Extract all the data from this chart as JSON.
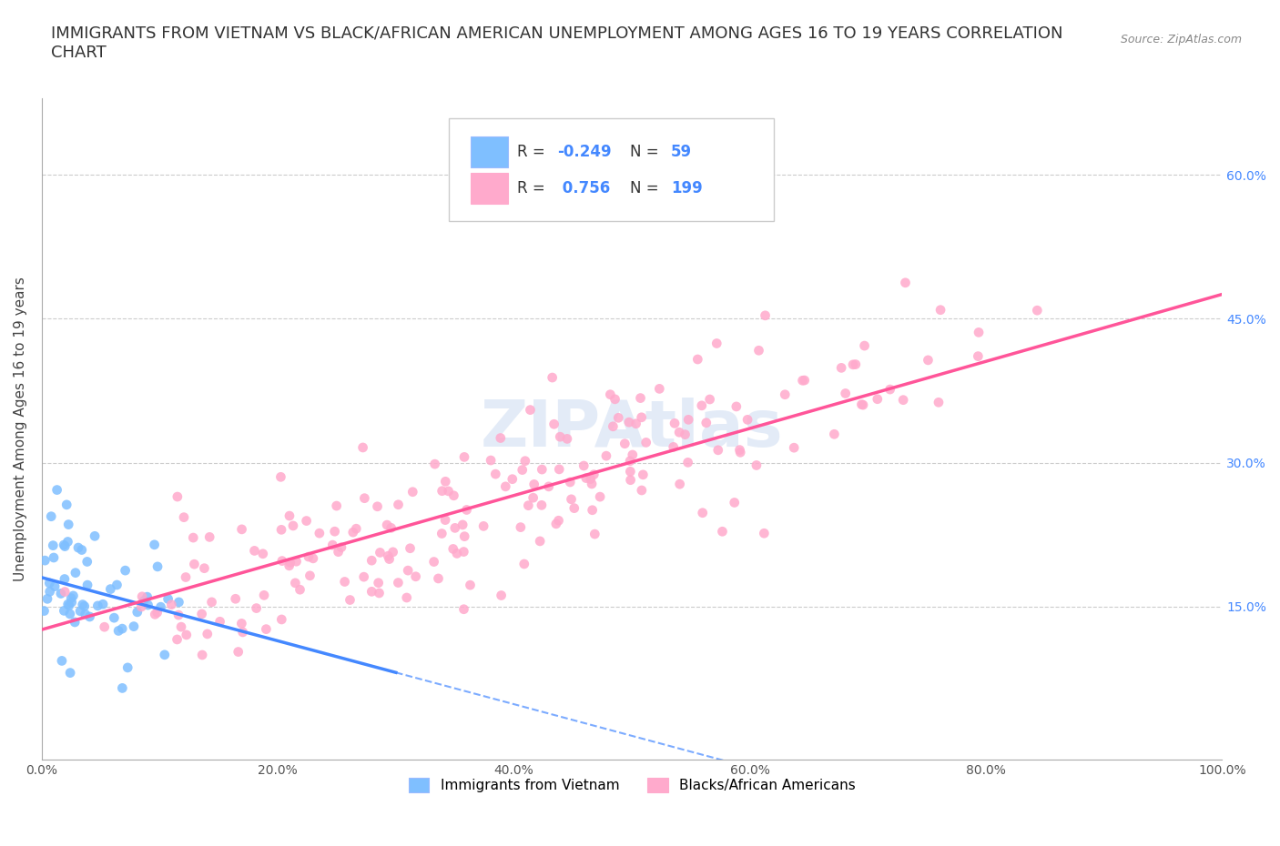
{
  "title": "IMMIGRANTS FROM VIETNAM VS BLACK/AFRICAN AMERICAN UNEMPLOYMENT AMONG AGES 16 TO 19 YEARS CORRELATION\nCHART",
  "source_text": "Source: ZipAtlas.com",
  "xlabel": "",
  "ylabel": "Unemployment Among Ages 16 to 19 years",
  "xlim": [
    0.0,
    1.0
  ],
  "ylim": [
    -0.01,
    0.68
  ],
  "xtick_labels": [
    "0.0%",
    "20.0%",
    "40.0%",
    "60.0%",
    "80.0%",
    "100.0%"
  ],
  "xtick_vals": [
    0.0,
    0.2,
    0.4,
    0.6,
    0.8,
    1.0
  ],
  "ytick_labels": [
    "15.0%",
    "30.0%",
    "45.0%",
    "60.0%"
  ],
  "ytick_vals": [
    0.15,
    0.3,
    0.45,
    0.6
  ],
  "legend_r1": "R = -0.249",
  "legend_n1": "N =  59",
  "legend_r2": "R =  0.756",
  "legend_n2": "N = 199",
  "blue_color": "#7fbfff",
  "pink_color": "#ffaacc",
  "blue_line_color": "#4488ff",
  "pink_line_color": "#ff5599",
  "watermark": "ZIPAtlas",
  "background_color": "#ffffff",
  "grid_color": "#cccccc",
  "title_fontsize": 13,
  "axis_fontsize": 11,
  "tick_fontsize": 10,
  "blue_R": -0.249,
  "pink_R": 0.756,
  "blue_N": 59,
  "pink_N": 199,
  "legend1_label": "Immigrants from Vietnam",
  "legend2_label": "Blacks/African Americans"
}
